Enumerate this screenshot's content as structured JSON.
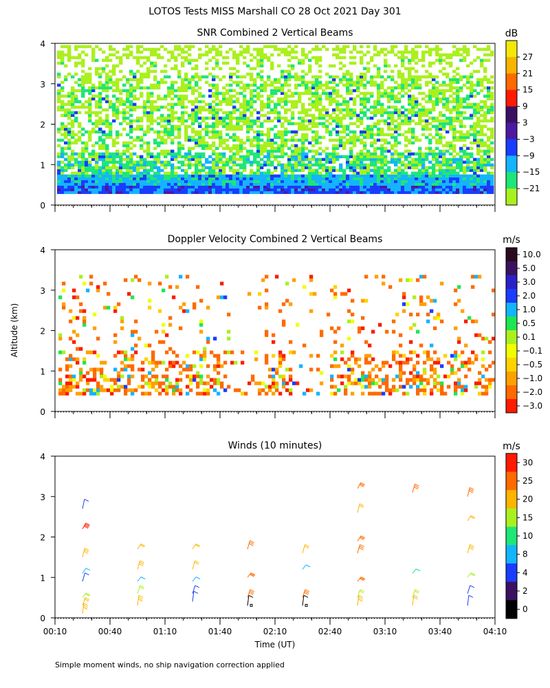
{
  "page": {
    "title": "LOTOS Tests MISS Marshall CO  28 Oct 2021 Day 301",
    "ylabel": "Altitude (km)",
    "xlabel": "Time (UT)",
    "footnote": "Simple moment winds, no ship navigation correction applied"
  },
  "chart_data": [
    {
      "type": "heatmap",
      "title": "SNR Combined 2 Vertical Beams",
      "xlabel": "Time (UT)",
      "ylabel": "Altitude (km)",
      "x_ticks": [
        "00:10",
        "00:40",
        "01:10",
        "01:40",
        "02:10",
        "02:40",
        "03:10",
        "03:40",
        "04:10"
      ],
      "y_ticks": [
        "0",
        "1",
        "2",
        "3",
        "4"
      ],
      "ylim": [
        0,
        4
      ],
      "colorbar": {
        "unit": "dB",
        "labels": [
          "27",
          "21",
          "15",
          "9",
          "3",
          "−3",
          "−9",
          "−15",
          "−21"
        ],
        "colors": [
          "#f2e80a",
          "#f7b400",
          "#ff6a00",
          "#ff1a00",
          "#3a1160",
          "#4b1aa0",
          "#1a3cff",
          "#14b4ff",
          "#1ee678",
          "#aaf01e"
        ]
      },
      "layers": [
        {
          "name": "sparse noise-floor returns",
          "alt_km": [
            0.3,
            4.0
          ],
          "dominant_db": -21
        },
        {
          "name": "mixed returns",
          "alt_km": [
            0.3,
            3.2
          ],
          "dominant_db": -15
        },
        {
          "name": "strong boundary layer",
          "alt_km": [
            0.25,
            0.7
          ],
          "dominant_db": -9
        },
        {
          "name": "peak near surface",
          "alt_km": [
            0.25,
            0.45
          ],
          "dominant_db": -3
        }
      ]
    },
    {
      "type": "heatmap",
      "title": "Doppler Velocity Combined 2 Vertical Beams",
      "xlabel": "Time (UT)",
      "ylabel": "Altitude (km)",
      "x_ticks": [
        "00:10",
        "00:40",
        "01:10",
        "01:40",
        "02:10",
        "02:40",
        "03:10",
        "03:40",
        "04:10"
      ],
      "y_ticks": [
        "0",
        "1",
        "2",
        "3",
        "4"
      ],
      "ylim": [
        0,
        4
      ],
      "colorbar": {
        "unit": "m/s",
        "labels": [
          "10.0",
          "5.0",
          "3.0",
          "2.0",
          "1.0",
          "0.5",
          "0.1",
          "−0.1",
          "−0.5",
          "−1.0",
          "−2.0",
          "−3.0"
        ],
        "colors": [
          "#2a0a1e",
          "#3a1160",
          "#2a20c8",
          "#1a3cff",
          "#14b4ff",
          "#1ee650",
          "#aaf01e",
          "#f0ff00",
          "#ffd200",
          "#ffa000",
          "#ff6a00",
          "#ff1a00"
        ]
      },
      "layers": [
        {
          "name": "downdraft band",
          "alt_km": [
            0.5,
            1.5
          ],
          "dominant_ms": -1.0
        },
        {
          "name": "scattered echoes",
          "alt_km": [
            1.5,
            3.3
          ],
          "dominant_ms": -0.5
        }
      ]
    },
    {
      "type": "scatter",
      "title": "Winds (10 minutes)",
      "xlabel": "Time (UT)",
      "ylabel": "Altitude (km)",
      "x_ticks": [
        "00:10",
        "00:40",
        "01:10",
        "01:40",
        "02:10",
        "02:40",
        "03:10",
        "03:40",
        "04:10"
      ],
      "y_ticks": [
        "0",
        "1",
        "2",
        "3",
        "4"
      ],
      "ylim": [
        0,
        4
      ],
      "colorbar": {
        "unit": "m/s",
        "labels": [
          "30",
          "25",
          "20",
          "15",
          "10",
          "8",
          "4",
          "2",
          "0"
        ],
        "colors": [
          "#ff1a00",
          "#ff6a00",
          "#ffb400",
          "#aaf01e",
          "#1ee678",
          "#14b4ff",
          "#1a3cff",
          "#3a1160",
          "#000000"
        ]
      },
      "profile_times": [
        "00:25",
        "00:55",
        "01:25",
        "01:55",
        "02:25",
        "02:55",
        "03:25",
        "03:55"
      ],
      "wind_barbs": [
        {
          "t": "00:25",
          "alt": [
            0.1,
            0.3,
            0.5,
            0.9,
            1.1,
            1.5,
            2.2,
            2.7
          ],
          "speed": [
            18,
            15,
            12,
            5,
            7,
            18,
            25,
            3
          ]
        },
        {
          "t": "00:55",
          "alt": [
            0.3,
            0.6,
            0.9,
            1.2,
            1.7
          ],
          "speed": [
            18,
            12,
            7,
            18,
            16
          ]
        },
        {
          "t": "01:25",
          "alt": [
            0.4,
            0.6,
            0.9,
            1.2,
            1.7
          ],
          "speed": [
            3,
            5,
            6,
            16,
            17
          ]
        },
        {
          "t": "01:55",
          "alt": [
            0.3,
            0.5,
            1.0,
            1.7
          ],
          "speed": [
            1,
            24,
            22,
            20
          ]
        },
        {
          "t": "02:25",
          "alt": [
            0.3,
            0.5,
            1.2,
            1.6
          ],
          "speed": [
            1,
            24,
            6,
            17
          ]
        },
        {
          "t": "02:55",
          "alt": [
            0.3,
            0.5,
            0.9,
            1.6,
            1.9,
            2.6,
            3.2
          ],
          "speed": [
            18,
            14,
            20,
            22,
            24,
            15,
            22
          ]
        },
        {
          "t": "03:25",
          "alt": [
            0.3,
            0.5,
            1.1,
            3.1
          ],
          "speed": [
            16,
            12,
            10,
            20
          ]
        },
        {
          "t": "03:55",
          "alt": [
            0.3,
            0.6,
            1.0,
            1.6,
            2.4,
            3.0
          ],
          "speed": [
            4,
            5,
            12,
            18,
            16,
            22
          ]
        }
      ]
    }
  ]
}
